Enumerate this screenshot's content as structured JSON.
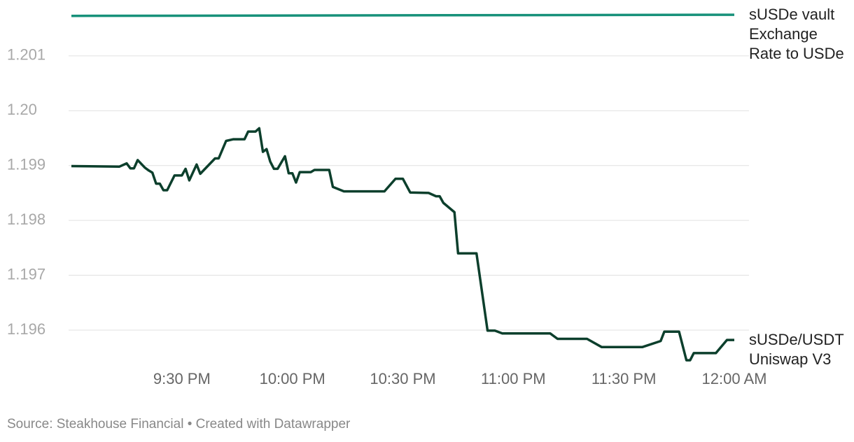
{
  "chart_data": {
    "type": "line",
    "source": "Source: Steakhouse Financial • Created with Datawrapper",
    "xlim": [
      "9:00 PM",
      "12:00 AM"
    ],
    "xticks": [
      "9:30 PM",
      "10:00 PM",
      "10:30 PM",
      "11:00 PM",
      "11:30 PM",
      "12:00 AM"
    ],
    "ylim": [
      1.1954,
      1.2018
    ],
    "yticks": [
      1.196,
      1.197,
      1.198,
      1.199,
      {
        "value": 1.2,
        "label": "1.20"
      },
      1.201
    ],
    "grid": true,
    "series": [
      {
        "name": "sUSDe vault Exchange Rate to USDe",
        "color": "#17917a",
        "x": [
          "9:00 PM",
          "12:00 AM"
        ],
        "values": [
          1.20173,
          1.20175
        ]
      },
      {
        "name": "sUSDe/USDT Uniswap V3",
        "color": "#0c3f2c",
        "x": [
          "9:00 PM",
          "9:13 PM",
          "9:15 PM",
          "9:16 PM",
          "9:17 PM",
          "9:18 PM",
          "9:20 PM",
          "9:21 PM",
          "9:22 PM",
          "9:23 PM",
          "9:24 PM",
          "9:25 PM",
          "9:26 PM",
          "9:28 PM",
          "9:30 PM",
          "9:31 PM",
          "9:32 PM",
          "9:34 PM",
          "9:35 PM",
          "9:39 PM",
          "9:40 PM",
          "9:42 PM",
          "9:44 PM",
          "9:47 PM",
          "9:48 PM",
          "9:50 PM",
          "9:51 PM",
          "9:52 PM",
          "9:53 PM",
          "9:54 PM",
          "9:55 PM",
          "9:56 PM",
          "9:58 PM",
          "9:59 PM",
          "10:00 PM",
          "10:01 PM",
          "10:02 PM",
          "10:05 PM",
          "10:06 PM",
          "10:10 PM",
          "10:11 PM",
          "10:14 PM",
          "10:25 PM",
          "10:28 PM",
          "10:30 PM",
          "10:32 PM",
          "10:37 PM",
          "10:39 PM",
          "10:40 PM",
          "10:41 PM",
          "10:44 PM",
          "10:45 PM",
          "10:50 PM",
          "10:53 PM",
          "10:55 PM",
          "10:57 PM",
          "11:10 PM",
          "11:12 PM",
          "11:20 PM",
          "11:24 PM",
          "11:35 PM",
          "11:40 PM",
          "11:41 PM",
          "11:45 PM",
          "11:47 PM",
          "11:48 PM",
          "11:49 PM",
          "11:55 PM",
          "11:58 PM",
          "12:00 AM"
        ],
        "values": [
          1.19899,
          1.19898,
          1.19904,
          1.19895,
          1.19895,
          1.1991,
          1.19896,
          1.19891,
          1.19887,
          1.19867,
          1.19867,
          1.19855,
          1.19855,
          1.19882,
          1.19882,
          1.19894,
          1.19873,
          1.19902,
          1.19885,
          1.19913,
          1.19913,
          1.19945,
          1.19948,
          1.19948,
          1.19962,
          1.19962,
          1.19968,
          1.19925,
          1.1993,
          1.19907,
          1.19894,
          1.19894,
          1.19917,
          1.19886,
          1.19886,
          1.19869,
          1.19888,
          1.19888,
          1.19892,
          1.19892,
          1.19861,
          1.19853,
          1.19853,
          1.19876,
          1.19876,
          1.19851,
          1.1985,
          1.19844,
          1.19844,
          1.19832,
          1.19815,
          1.1974,
          1.1974,
          1.19599,
          1.19599,
          1.19594,
          1.19594,
          1.19584,
          1.19584,
          1.19569,
          1.19569,
          1.1958,
          1.19597,
          1.19597,
          1.19545,
          1.19545,
          1.19558,
          1.19558,
          1.19582,
          1.19582
        ]
      }
    ]
  }
}
